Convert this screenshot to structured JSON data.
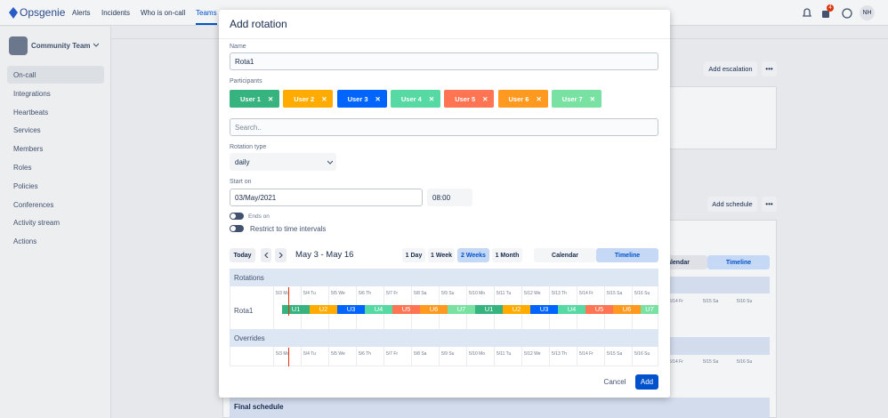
{
  "nav": {
    "logo": "Opsgenie",
    "items": [
      "Alerts",
      "Incidents",
      "Who is on-call",
      "Teams"
    ],
    "notification_count": "4",
    "avatar": "NH"
  },
  "sidebar": {
    "team": "Community Team",
    "items": [
      "On-call",
      "Integrations",
      "Heartbeats",
      "Services",
      "Members",
      "Roles",
      "Policies",
      "Conferences",
      "Activity stream",
      "Actions"
    ]
  },
  "background": {
    "add_escalation": "Add escalation",
    "add_schedule": "Add schedule",
    "calendar_tab": "Calendar",
    "timeline_tab": "Timeline",
    "dates": [
      "5/14 Fr",
      "5/15 Sa",
      "5/16 Su"
    ],
    "final_schedule": "Final schedule"
  },
  "modal": {
    "title": "Add rotation",
    "name_label": "Name",
    "name_value": "Rota1",
    "participants_label": "Participants",
    "participants": [
      {
        "name": "User 1",
        "color": "#36b37e"
      },
      {
        "name": "User 2",
        "color": "#ffab00"
      },
      {
        "name": "User 3",
        "color": "#0065ff"
      },
      {
        "name": "User 4",
        "color": "#57d9a3"
      },
      {
        "name": "User 5",
        "color": "#ff7452"
      },
      {
        "name": "User 6",
        "color": "#ff991f"
      },
      {
        "name": "User 7",
        "color": "#79e2a2"
      }
    ],
    "search_placeholder": "Search..",
    "rotation_type_label": "Rotation type",
    "rotation_type": "daily",
    "start_on_label": "Start on",
    "start_date": "03/May/2021",
    "start_time": "08:00",
    "ends_on_label": "Ends on",
    "restrict_label": "Restrict to time intervals",
    "today": "Today",
    "range": "May 3 - May 16",
    "periods": [
      "1 Day",
      "1 Week",
      "2 Weeks",
      "1 Month"
    ],
    "views": [
      "Calendar",
      "Timeline"
    ],
    "rotations_label": "Rotations",
    "days": [
      "5/3 Mo",
      "5/4 Tu",
      "5/5 We",
      "5/6 Th",
      "5/7 Fr",
      "5/8 Sa",
      "5/9 Su",
      "5/10 Mo",
      "5/11 Tu",
      "5/12 We",
      "5/13 Th",
      "5/14 Fr",
      "5/15 Sa",
      "5/16 Su"
    ],
    "rotation_name": "Rota1",
    "shifts": [
      {
        "label": "U1",
        "color": "#36b37e"
      },
      {
        "label": "U2",
        "color": "#ffab00"
      },
      {
        "label": "U3",
        "color": "#0065ff"
      },
      {
        "label": "U4",
        "color": "#57d9a3"
      },
      {
        "label": "U5",
        "color": "#ff7452"
      },
      {
        "label": "U6",
        "color": "#ff991f"
      },
      {
        "label": "U7",
        "color": "#79e2a2"
      },
      {
        "label": "U1",
        "color": "#36b37e"
      },
      {
        "label": "U2",
        "color": "#ffab00"
      },
      {
        "label": "U3",
        "color": "#0065ff"
      },
      {
        "label": "U4",
        "color": "#57d9a3"
      },
      {
        "label": "U5",
        "color": "#ff7452"
      },
      {
        "label": "U6",
        "color": "#ff991f"
      },
      {
        "label": "U7",
        "color": "#79e2a2"
      }
    ],
    "overrides_label": "Overrides",
    "cancel": "Cancel",
    "add": "Add"
  }
}
